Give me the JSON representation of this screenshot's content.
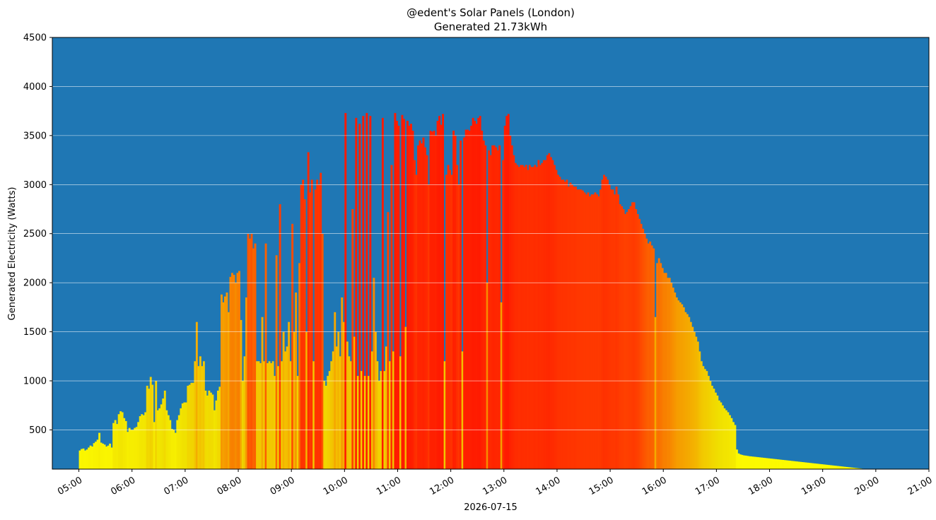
{
  "chart_data": {
    "type": "bar",
    "title": "@edent's Solar Panels (London)",
    "subtitle": "Generated 21.73kWh",
    "xlabel": "2026-07-15",
    "ylabel": "Generated Electricity (Watts)",
    "ylim": [
      100,
      4500
    ],
    "xlim": [
      "04:30",
      "21:00"
    ],
    "y_ticks": [
      500,
      1000,
      1500,
      2000,
      2500,
      3000,
      3500,
      4000,
      4500
    ],
    "x_ticks": [
      "05:00",
      "06:00",
      "07:00",
      "08:00",
      "09:00",
      "10:00",
      "11:00",
      "12:00",
      "13:00",
      "14:00",
      "15:00",
      "16:00",
      "17:00",
      "18:00",
      "19:00",
      "20:00",
      "21:00"
    ],
    "grid": "horizontal",
    "background_color": "#1f77b4",
    "grid_color": "#ffffff",
    "color_scale": [
      "#ffff00",
      "#f0e000",
      "#f5a000",
      "#ff4000",
      "#ff1a00"
    ],
    "series": [
      {
        "time_step_minutes": 2,
        "x_start": "05:00",
        "values": [
          290,
          305,
          310,
          290,
          300,
          320,
          340,
          330,
          365,
          380,
          400,
          470,
          370,
          360,
          350,
          330,
          340,
          360,
          320,
          570,
          600,
          560,
          660,
          690,
          680,
          620,
          590,
          480,
          520,
          500,
          500,
          520,
          530,
          580,
          640,
          660,
          650,
          680,
          950,
          920,
          1040,
          960,
          580,
          1000,
          700,
          720,
          760,
          820,
          900,
          700,
          650,
          600,
          510,
          500,
          470,
          600,
          650,
          720,
          770,
          780,
          780,
          950,
          960,
          980,
          980,
          1200,
          1600,
          1150,
          1250,
          1150,
          1200,
          900,
          850,
          900,
          880,
          860,
          700,
          800,
          900,
          940,
          1880,
          1800,
          1860,
          1900,
          1700,
          2060,
          2100,
          2080,
          2000,
          2100,
          2120,
          1620,
          1000,
          1250,
          1850,
          2500,
          2450,
          2500,
          2350,
          2400,
          1200,
          1200,
          1180,
          1650,
          1200,
          2400,
          1180,
          1200,
          1180,
          1200,
          1050,
          2280,
          1150,
          2800,
          1200,
          1500,
          1300,
          1350,
          1600,
          1200,
          2600,
          1500,
          1900,
          1050,
          2200,
          3000,
          3050,
          2850,
          1500,
          3330,
          2920,
          3050,
          1200,
          2950,
          3050,
          3000,
          3120,
          2500,
          1000,
          950,
          1050,
          1100,
          1200,
          1300,
          1700,
          1350,
          1500,
          1250,
          1850,
          1600,
          3730,
          1400,
          1250,
          1200,
          2750,
          1450,
          3680,
          1050,
          3620,
          1100,
          3700,
          1050,
          3730,
          1050,
          3700,
          1300,
          2050,
          1500,
          1200,
          1000,
          1100,
          3680,
          1100,
          1350,
          2720,
          1200,
          3200,
          1300,
          3730,
          3650,
          3600,
          1250,
          3710,
          3670,
          1550,
          3650,
          3600,
          3620,
          3550,
          3250,
          3100,
          3400,
          3450,
          3420,
          3480,
          3380,
          3300,
          3000,
          3550,
          3540,
          3550,
          3500,
          3650,
          3700,
          3610,
          3720,
          1200,
          3100,
          3200,
          3150,
          3100,
          3550,
          3500,
          3200,
          3000,
          3450,
          1300,
          3480,
          3560,
          3560,
          3550,
          3600,
          3680,
          3650,
          3620,
          3680,
          3700,
          3550,
          3450,
          3400,
          2000,
          3350,
          3300,
          3400,
          3400,
          3380,
          3350,
          3400,
          1800,
          3250,
          3600,
          3700,
          3720,
          3500,
          3400,
          3300,
          3220,
          3200,
          3180,
          3200,
          3200,
          3180,
          3200,
          3150,
          3200,
          3180,
          3180,
          3200,
          3180,
          3250,
          3200,
          3220,
          3250,
          3250,
          3300,
          3320,
          3280,
          3250,
          3200,
          3150,
          3100,
          3080,
          3050,
          3050,
          3030,
          3050,
          2980,
          3020,
          3000,
          2980,
          2980,
          2950,
          2950,
          2950,
          2940,
          2920,
          2900,
          2920,
          2880,
          2900,
          2900,
          2920,
          2900,
          2880,
          2950,
          3050,
          3100,
          3080,
          3050,
          3000,
          2950,
          2950,
          2900,
          2980,
          2900,
          2800,
          2780,
          2750,
          2700,
          2720,
          2750,
          2780,
          2820,
          2820,
          2750,
          2700,
          2650,
          2600,
          2550,
          2500,
          2450,
          2400,
          2420,
          2380,
          2350,
          1650,
          2200,
          2250,
          2200,
          2150,
          2100,
          2100,
          2050,
          2050,
          2000,
          1950,
          1900,
          1850,
          1820,
          1800,
          1780,
          1750,
          1700,
          1680,
          1650,
          1600,
          1550,
          1500,
          1450,
          1400,
          1300,
          1200,
          1150,
          1120,
          1100,
          1050,
          1000,
          950,
          920,
          880,
          850,
          800,
          780,
          750,
          720,
          700,
          680,
          650,
          620,
          580,
          550,
          300,
          260,
          250,
          245,
          240,
          238,
          235,
          232,
          230,
          228,
          226,
          224,
          222,
          220,
          218,
          216,
          214,
          212,
          210,
          208,
          206,
          204,
          202,
          200,
          198,
          196,
          194,
          192,
          190,
          188,
          186,
          184,
          182,
          180,
          178,
          176,
          174,
          172,
          170,
          168,
          166,
          164,
          162,
          160,
          158,
          156,
          154,
          152,
          150,
          148,
          146,
          144,
          142,
          140,
          138,
          136,
          134,
          132,
          130,
          128,
          126,
          124,
          122,
          120,
          118,
          116,
          114,
          112,
          110,
          108,
          106,
          104,
          102,
          100
        ]
      }
    ]
  }
}
